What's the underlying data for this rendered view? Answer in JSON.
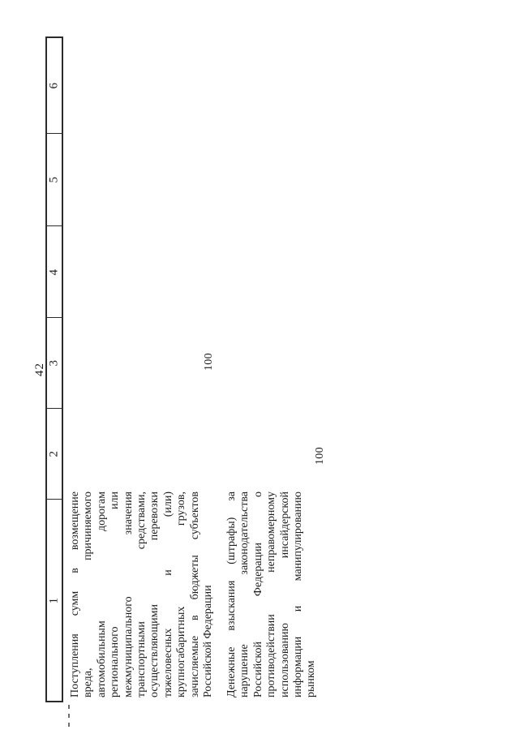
{
  "page": {
    "number": "42"
  },
  "colors": {
    "ink": "#1b1b1b",
    "border": "#2b2b2b",
    "background": "#ffffff"
  },
  "table": {
    "header_cells_display": [
      "6",
      "5",
      "4",
      "3",
      "2",
      "1"
    ],
    "rows": [
      {
        "description": "Поступления сумм в возмещение вреда, причиняемого автомобильным дорогам регионального или межмуниципального значения транспортными средствами, осуществляющими перевозки тяжеловесных и (или) крупногабаритных грузов, зачисляемые в бюджеты субъектов Российской Федерации",
        "description_lines": [
          "Поступления сумм в возмещение",
          "вреда, причиняемого",
          "автомобильным дорогам",
          "регионального или",
          "межмуниципального значения",
          "транспортными средствами,",
          "осуществляющими перевозки",
          "тяжеловесных и (или)",
          "крупногабаритных грузов,",
          "зачисляемые в бюджеты субъектов",
          "Российской Федерации"
        ],
        "value": "100",
        "value_column": "3"
      },
      {
        "description": "Денежные взыскания (штрафы) за нарушение законодательства Российской Федерации о противодействии неправомерному использованию инсайдерской информации и манипулированию рынком",
        "description_lines": [
          "Денежные взыскания (штрафы) за",
          "нарушение законодательства",
          "Российской Федерации о",
          "противодействии неправомерному",
          "использованию инсайдерской",
          "информации и манипулированию",
          "рынком"
        ],
        "value": "100",
        "value_column": "2"
      }
    ]
  }
}
